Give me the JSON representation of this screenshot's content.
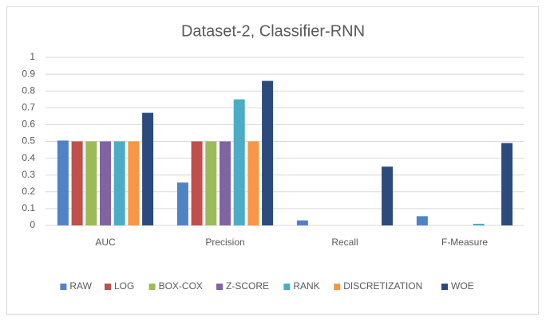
{
  "chart_data": {
    "type": "bar",
    "title": "Dataset-2, Classifier-RNN",
    "categories": [
      "AUC",
      "Precision",
      "Recall",
      "F-Measure"
    ],
    "series": [
      {
        "name": "RAW",
        "color": "#5082c6",
        "values": [
          0.505,
          0.255,
          0.03,
          0.055
        ]
      },
      {
        "name": "LOG",
        "color": "#c0504d",
        "values": [
          0.5,
          0.5,
          0,
          0
        ]
      },
      {
        "name": "BOX-COX",
        "color": "#9bbb59",
        "values": [
          0.5,
          0.5,
          0,
          0
        ]
      },
      {
        "name": "Z-SCORE",
        "color": "#8064a2",
        "values": [
          0.5,
          0.5,
          0,
          0
        ]
      },
      {
        "name": "RANK",
        "color": "#4bacc6",
        "values": [
          0.5,
          0.75,
          0,
          0.01
        ]
      },
      {
        "name": "DISCRETIZATION",
        "color": "#f79646",
        "values": [
          0.5,
          0.5,
          0,
          0
        ]
      },
      {
        "name": "WOE",
        "color": "#2c4a7c",
        "values": [
          0.67,
          0.86,
          0.35,
          0.49
        ]
      }
    ],
    "ylim": [
      0,
      1
    ],
    "yticks": [
      0,
      0.1,
      0.2,
      0.3,
      0.4,
      0.5,
      0.6,
      0.7,
      0.8,
      0.9,
      1
    ],
    "grid": true,
    "legend": "bottom"
  }
}
